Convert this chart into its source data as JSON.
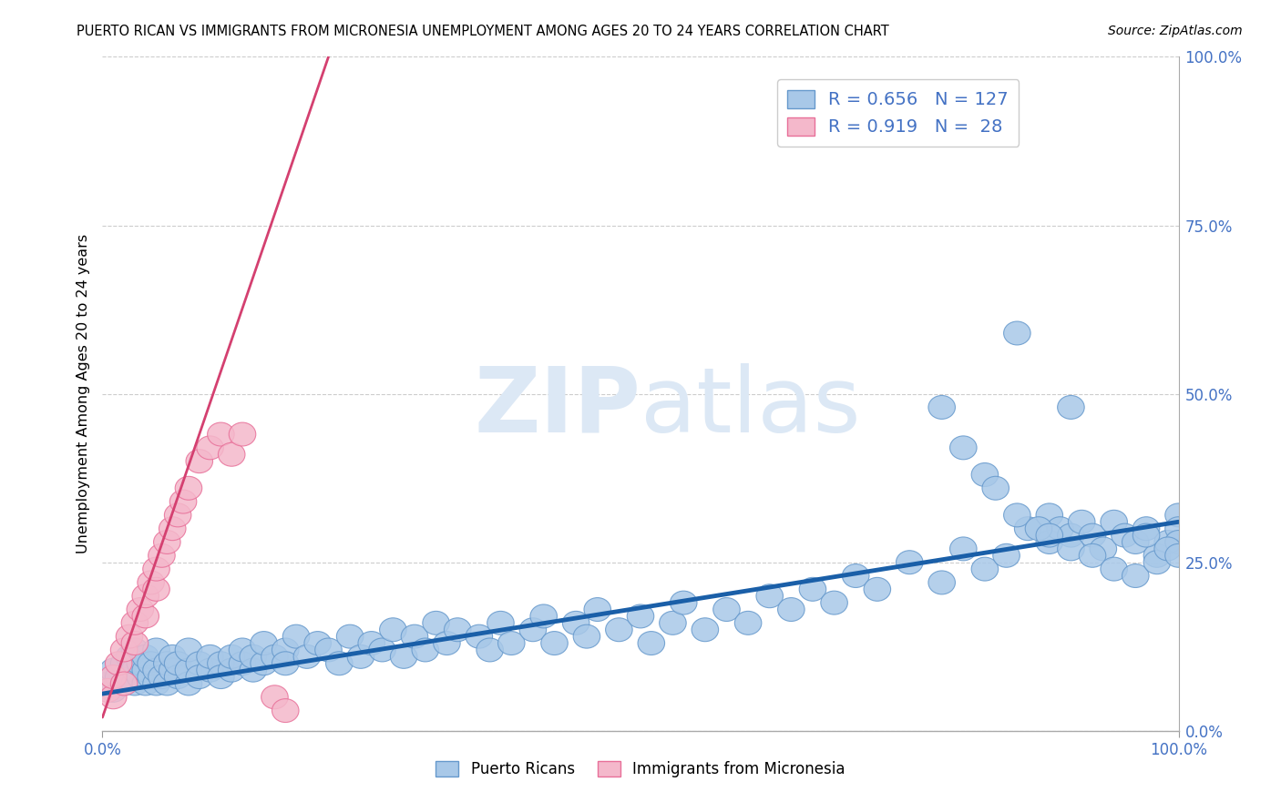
{
  "title": "PUERTO RICAN VS IMMIGRANTS FROM MICRONESIA UNEMPLOYMENT AMONG AGES 20 TO 24 YEARS CORRELATION CHART",
  "source": "Source: ZipAtlas.com",
  "ylabel": "Unemployment Among Ages 20 to 24 years",
  "xlim": [
    0.0,
    1.0
  ],
  "ylim": [
    0.0,
    1.0
  ],
  "x_tick_labels": [
    "0.0%",
    "100.0%"
  ],
  "y_tick_labels_right": [
    "0.0%",
    "25.0%",
    "50.0%",
    "75.0%",
    "100.0%"
  ],
  "y_tick_vals_right": [
    0.0,
    0.25,
    0.5,
    0.75,
    1.0
  ],
  "blue_color": "#a8c8e8",
  "pink_color": "#f4b8cb",
  "blue_edge_color": "#6699cc",
  "pink_edge_color": "#e87099",
  "blue_line_color": "#1a5fa8",
  "pink_line_color": "#d44070",
  "watermark_color": "#dce8f5",
  "grid_color": "#cccccc",
  "blue_r": 0.656,
  "blue_n": 127,
  "pink_r": 0.919,
  "pink_n": 28,
  "blue_line_x": [
    0.0,
    1.0
  ],
  "blue_line_y": [
    0.055,
    0.31
  ],
  "pink_line_x": [
    0.0,
    0.21
  ],
  "pink_line_y": [
    0.02,
    1.0
  ],
  "blue_x": [
    0.005,
    0.01,
    0.01,
    0.015,
    0.02,
    0.02,
    0.025,
    0.025,
    0.03,
    0.03,
    0.03,
    0.035,
    0.035,
    0.04,
    0.04,
    0.04,
    0.045,
    0.045,
    0.05,
    0.05,
    0.05,
    0.055,
    0.06,
    0.06,
    0.065,
    0.065,
    0.07,
    0.07,
    0.08,
    0.08,
    0.08,
    0.09,
    0.09,
    0.1,
    0.1,
    0.11,
    0.11,
    0.12,
    0.12,
    0.13,
    0.13,
    0.14,
    0.14,
    0.15,
    0.15,
    0.16,
    0.17,
    0.17,
    0.18,
    0.19,
    0.2,
    0.21,
    0.22,
    0.23,
    0.24,
    0.25,
    0.26,
    0.27,
    0.28,
    0.29,
    0.3,
    0.31,
    0.32,
    0.33,
    0.35,
    0.36,
    0.37,
    0.38,
    0.4,
    0.41,
    0.42,
    0.44,
    0.45,
    0.46,
    0.48,
    0.5,
    0.51,
    0.53,
    0.54,
    0.56,
    0.58,
    0.6,
    0.62,
    0.64,
    0.66,
    0.68,
    0.7,
    0.72,
    0.75,
    0.78,
    0.8,
    0.82,
    0.84,
    0.85,
    0.86,
    0.88,
    0.88,
    0.89,
    0.9,
    0.9,
    0.91,
    0.92,
    0.93,
    0.94,
    0.95,
    0.96,
    0.97,
    0.98,
    0.99,
    1.0,
    1.0,
    1.0,
    0.78,
    0.8,
    0.82,
    0.83,
    0.85,
    0.87,
    0.88,
    0.9,
    0.92,
    0.94,
    0.96,
    0.97,
    0.98,
    0.99,
    1.0
  ],
  "blue_y": [
    0.07,
    0.06,
    0.09,
    0.08,
    0.07,
    0.1,
    0.08,
    0.11,
    0.07,
    0.09,
    0.12,
    0.08,
    0.1,
    0.07,
    0.09,
    0.11,
    0.08,
    0.1,
    0.07,
    0.09,
    0.12,
    0.08,
    0.07,
    0.1,
    0.09,
    0.11,
    0.08,
    0.1,
    0.07,
    0.09,
    0.12,
    0.1,
    0.08,
    0.09,
    0.11,
    0.1,
    0.08,
    0.09,
    0.11,
    0.1,
    0.12,
    0.09,
    0.11,
    0.1,
    0.13,
    0.11,
    0.12,
    0.1,
    0.14,
    0.11,
    0.13,
    0.12,
    0.1,
    0.14,
    0.11,
    0.13,
    0.12,
    0.15,
    0.11,
    0.14,
    0.12,
    0.16,
    0.13,
    0.15,
    0.14,
    0.12,
    0.16,
    0.13,
    0.15,
    0.17,
    0.13,
    0.16,
    0.14,
    0.18,
    0.15,
    0.17,
    0.13,
    0.16,
    0.19,
    0.15,
    0.18,
    0.16,
    0.2,
    0.18,
    0.21,
    0.19,
    0.23,
    0.21,
    0.25,
    0.22,
    0.27,
    0.24,
    0.26,
    0.59,
    0.3,
    0.28,
    0.32,
    0.3,
    0.29,
    0.48,
    0.31,
    0.29,
    0.27,
    0.31,
    0.29,
    0.28,
    0.3,
    0.26,
    0.28,
    0.32,
    0.3,
    0.28,
    0.48,
    0.42,
    0.38,
    0.36,
    0.32,
    0.3,
    0.29,
    0.27,
    0.26,
    0.24,
    0.23,
    0.29,
    0.25,
    0.27,
    0.26
  ],
  "pink_x": [
    0.005,
    0.01,
    0.01,
    0.015,
    0.02,
    0.02,
    0.025,
    0.03,
    0.03,
    0.035,
    0.04,
    0.04,
    0.045,
    0.05,
    0.05,
    0.055,
    0.06,
    0.065,
    0.07,
    0.075,
    0.08,
    0.09,
    0.1,
    0.11,
    0.12,
    0.13,
    0.16,
    0.17
  ],
  "pink_y": [
    0.06,
    0.05,
    0.08,
    0.1,
    0.07,
    0.12,
    0.14,
    0.13,
    0.16,
    0.18,
    0.17,
    0.2,
    0.22,
    0.21,
    0.24,
    0.26,
    0.28,
    0.3,
    0.32,
    0.34,
    0.36,
    0.4,
    0.42,
    0.44,
    0.41,
    0.44,
    0.05,
    0.03
  ]
}
